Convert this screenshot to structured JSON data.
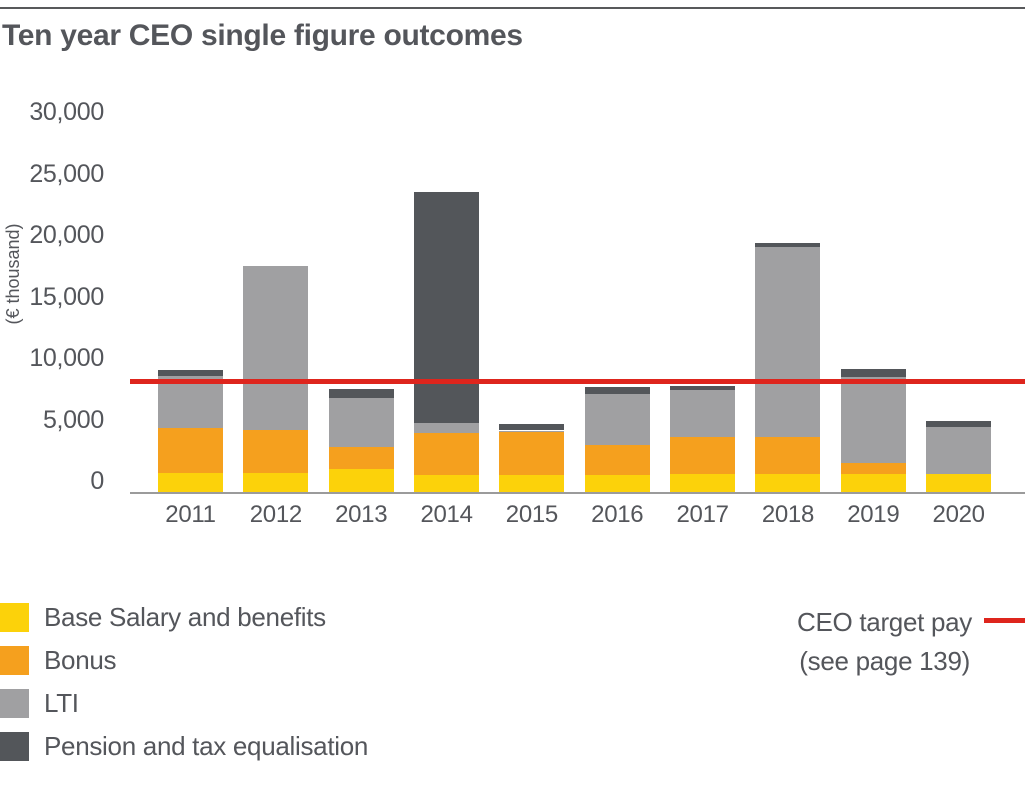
{
  "page": {
    "title": "Ten year CEO single figure outcomes"
  },
  "colors": {
    "text": "#54565B",
    "rule": "#58595B",
    "axis": "#9B9B9B",
    "base_salary": "#FCD20A",
    "bonus": "#F5A01E",
    "lti": "#A0A0A2",
    "pension": "#53565A",
    "target_red": "#DE251D"
  },
  "chart_data": {
    "type": "bar",
    "stacked": true,
    "title": "Ten year CEO single figure outcomes",
    "ylabel": "(€ thousand)",
    "xlabel": "",
    "ylim": [
      0,
      30000
    ],
    "grid": false,
    "legend_position": "bottom-left",
    "yticks": [
      0,
      5000,
      10000,
      15000,
      20000,
      25000,
      30000
    ],
    "ytick_labels": [
      "0",
      "5,000",
      "10,000",
      "15,000",
      "20,000",
      "25,000",
      "30,000"
    ],
    "categories": [
      "2011",
      "2012",
      "2013",
      "2014",
      "2015",
      "2016",
      "2017",
      "2018",
      "2019",
      "2020"
    ],
    "series": [
      {
        "name": "Base Salary and benefits",
        "color_key": "base_salary",
        "values": [
          1550,
          1550,
          1850,
          1350,
          1400,
          1400,
          1450,
          1450,
          1450,
          1450
        ]
      },
      {
        "name": "Bonus",
        "color_key": "bonus",
        "values": [
          3650,
          3500,
          1800,
          3450,
          3450,
          2450,
          3000,
          3000,
          900,
          0
        ]
      },
      {
        "name": "LTI",
        "color_key": "lti",
        "values": [
          4250,
          13300,
          4000,
          850,
          150,
          4100,
          3850,
          15450,
          7000,
          3800
        ]
      },
      {
        "name": "Pension and tax equalisation",
        "color_key": "pension",
        "values": [
          500,
          0,
          700,
          18750,
          550,
          550,
          350,
          350,
          650,
          550
        ]
      }
    ],
    "totals_estimate": [
      9950,
      18350,
      8350,
      24400,
      5550,
      8500,
      8650,
      20250,
      10000,
      5800
    ],
    "target_line": {
      "label": "CEO target pay",
      "note": "(see page 139)",
      "value_estimate": 9000,
      "color_key": "target_red"
    }
  }
}
